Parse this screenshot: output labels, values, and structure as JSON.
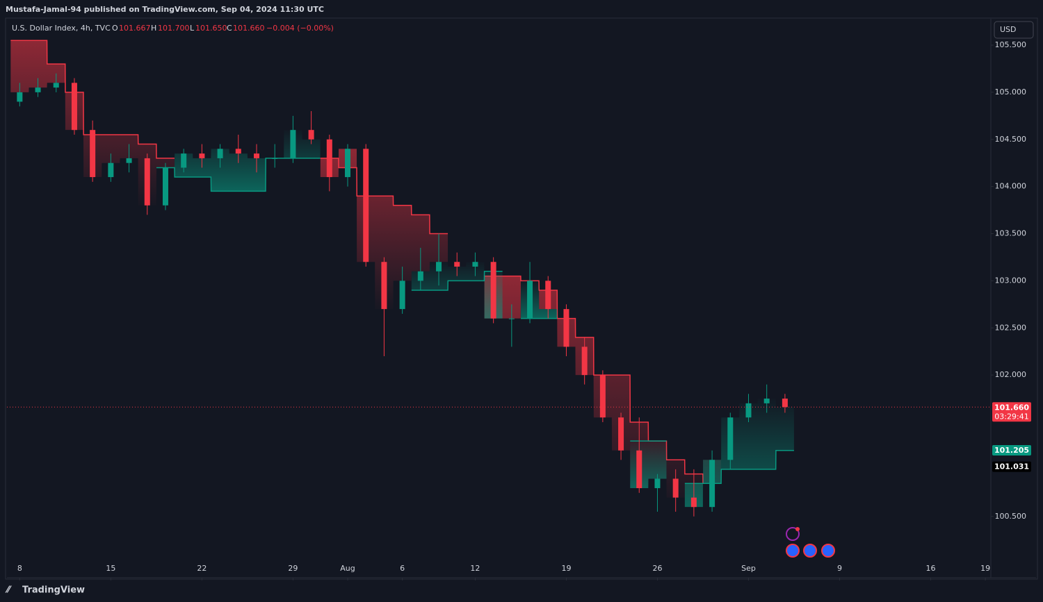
{
  "header": {
    "publisher": "Mustafa-Jamal-94 published on TradingView.com, Sep 04, 2024 11:30 UTC"
  },
  "legend": {
    "symbol": "U.S. Dollar Index, 4h, TVC",
    "o_label": "O",
    "o": "101.667",
    "h_label": "H",
    "h": "101.700",
    "l_label": "L",
    "l": "101.650",
    "c_label": "C",
    "c": "101.660",
    "change": "−0.004 (−0.00%)"
  },
  "currency": "USD",
  "footer": {
    "brand": "TradingView"
  },
  "chart_data": {
    "type": "candlestick",
    "colors": {
      "up": "#089981",
      "down": "#f23645",
      "upper_band": "#f23645",
      "lower_band": "#089981"
    },
    "x": [
      0,
      1,
      2,
      3,
      4,
      5,
      6,
      7,
      8,
      9,
      10,
      11,
      12,
      13,
      14,
      15,
      16,
      17,
      18,
      19,
      20,
      21,
      22,
      23,
      24,
      25,
      26,
      27,
      28,
      29,
      30,
      31,
      32,
      33,
      34,
      35,
      36,
      37,
      38,
      39,
      40,
      41,
      42
    ],
    "open": [
      104.9,
      105.0,
      105.05,
      105.1,
      104.6,
      104.1,
      104.25,
      104.3,
      103.8,
      104.2,
      104.35,
      104.3,
      104.4,
      104.35,
      104.3,
      104.3,
      104.6,
      104.5,
      104.1,
      104.4,
      103.2,
      102.7,
      103.0,
      103.1,
      103.2,
      103.15,
      103.2,
      102.6,
      102.6,
      103.0,
      102.7,
      102.3,
      102.0,
      101.55,
      101.2,
      100.8,
      100.9,
      100.7,
      100.6,
      101.1,
      101.55,
      101.7,
      101.75
    ],
    "high": [
      105.1,
      105.15,
      105.2,
      105.15,
      104.7,
      104.35,
      104.45,
      104.35,
      104.25,
      104.4,
      104.45,
      104.45,
      104.55,
      104.45,
      104.45,
      104.75,
      104.8,
      104.55,
      104.45,
      104.45,
      103.25,
      103.15,
      103.35,
      103.5,
      103.3,
      103.3,
      103.25,
      102.75,
      103.2,
      103.05,
      102.75,
      102.4,
      102.05,
      101.6,
      101.55,
      100.95,
      101.0,
      101.0,
      101.2,
      101.6,
      101.8,
      101.9,
      101.8
    ],
    "low": [
      104.85,
      104.95,
      105.0,
      104.55,
      104.05,
      104.05,
      104.15,
      103.7,
      103.75,
      104.15,
      104.2,
      104.2,
      104.25,
      104.15,
      104.2,
      104.25,
      104.45,
      103.95,
      104.0,
      103.15,
      102.2,
      102.65,
      102.9,
      102.95,
      103.05,
      103.05,
      102.55,
      102.3,
      102.55,
      102.6,
      102.2,
      101.9,
      101.5,
      101.1,
      100.75,
      100.55,
      100.55,
      100.5,
      100.55,
      101.0,
      101.5,
      101.6,
      101.6
    ],
    "close": [
      105.0,
      105.05,
      105.1,
      104.6,
      104.1,
      104.25,
      104.3,
      103.8,
      104.2,
      104.35,
      104.3,
      104.4,
      104.35,
      104.3,
      104.3,
      104.6,
      104.5,
      104.1,
      104.4,
      103.2,
      102.7,
      103.0,
      103.1,
      103.2,
      103.15,
      103.2,
      102.6,
      102.6,
      103.0,
      102.7,
      102.3,
      102.0,
      101.55,
      101.2,
      100.8,
      100.9,
      100.7,
      100.6,
      101.1,
      101.55,
      101.7,
      101.75,
      101.66
    ],
    "upper_band": [
      105.55,
      105.55,
      105.3,
      105.0,
      104.55,
      104.55,
      104.55,
      104.45,
      104.3,
      null,
      null,
      null,
      null,
      null,
      null,
      null,
      null,
      104.3,
      104.2,
      103.9,
      103.9,
      103.8,
      103.7,
      103.5,
      null,
      null,
      103.05,
      103.05,
      103.0,
      102.9,
      102.6,
      102.4,
      102.0,
      102.0,
      101.5,
      101.3,
      101.1,
      100.95,
      100.85,
      null,
      null,
      null,
      null
    ],
    "lower_band": [
      null,
      null,
      null,
      null,
      null,
      null,
      null,
      null,
      104.2,
      104.1,
      104.1,
      103.95,
      103.95,
      103.95,
      104.3,
      104.3,
      104.3,
      null,
      null,
      null,
      null,
      null,
      102.9,
      102.9,
      103.0,
      103.0,
      103.1,
      null,
      102.6,
      102.6,
      null,
      null,
      null,
      null,
      101.3,
      101.3,
      null,
      100.85,
      100.85,
      101.0,
      101.0,
      101.0,
      101.2
    ],
    "xlim": [
      -0.7,
      53.3
    ],
    "xticks": [
      {
        "value": 0,
        "label": "8"
      },
      {
        "value": 5,
        "label": "15"
      },
      {
        "value": 10,
        "label": "22"
      },
      {
        "value": 15,
        "label": "29"
      },
      {
        "value": 18,
        "label": "Aug"
      },
      {
        "value": 21,
        "label": "6"
      },
      {
        "value": 25,
        "label": "12"
      },
      {
        "value": 30,
        "label": "19"
      },
      {
        "value": 35,
        "label": "26"
      },
      {
        "value": 40,
        "label": "Sep"
      },
      {
        "value": 45,
        "label": "9"
      },
      {
        "value": 50,
        "label": "16"
      },
      {
        "value": 53,
        "label": "19"
      }
    ],
    "ylim": [
      99.85,
      105.78
    ],
    "yticks": [
      {
        "value": 100.5,
        "label": "100.500"
      },
      {
        "value": 102,
        "label": "102.000"
      },
      {
        "value": 102.5,
        "label": "102.500"
      },
      {
        "value": 103,
        "label": "103.000"
      },
      {
        "value": 103.5,
        "label": "103.500"
      },
      {
        "value": 104,
        "label": "104.000"
      },
      {
        "value": 104.5,
        "label": "104.500"
      },
      {
        "value": 105,
        "label": "105.000"
      },
      {
        "value": 105.5,
        "label": "105.500"
      }
    ],
    "price_tags": [
      {
        "value": 101.66,
        "label": "101.660",
        "sub": "03:29:41",
        "color": "#f23645"
      },
      {
        "value": 101.205,
        "label": "101.205",
        "color": "#089981"
      },
      {
        "value": 101.031,
        "label": "101.031",
        "color": "#000000"
      }
    ]
  }
}
